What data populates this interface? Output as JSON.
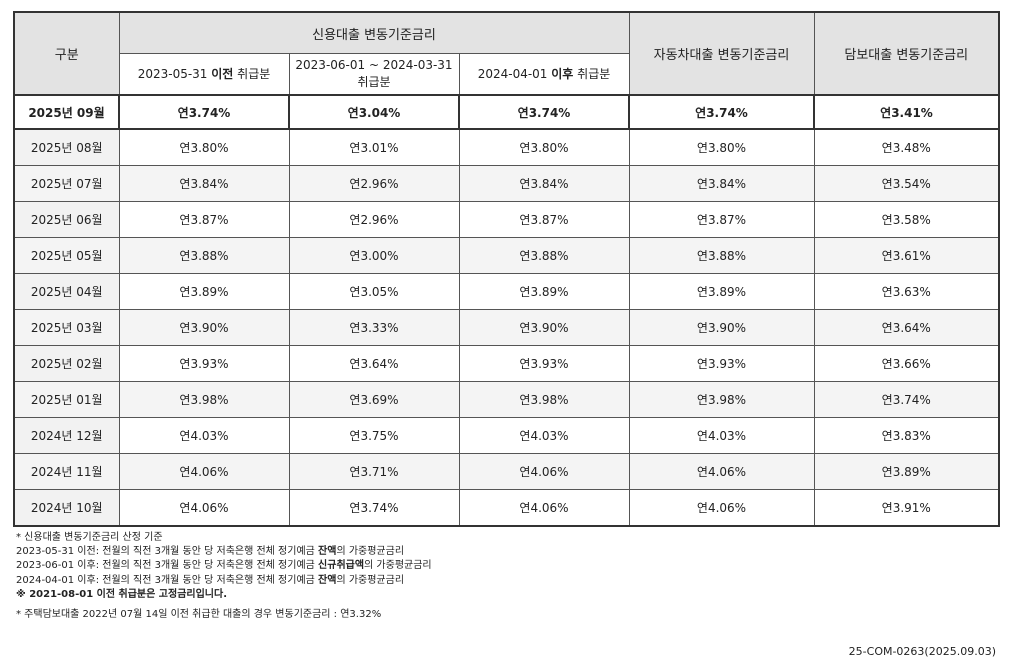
{
  "header": {
    "category": "구분",
    "credit_group": "신용대출 변동기준금리",
    "credit_sub": [
      {
        "pre": "2023-05-31 ",
        "bold": "이전",
        "post": " 취급분"
      },
      {
        "pre": "2023-06-01 ~ 2024-03-31",
        "bold": "",
        "post": "취급분"
      },
      {
        "pre": "2024-04-01 ",
        "bold": "이후",
        "post": " 취급분"
      }
    ],
    "auto": "자동차대출 변동기준금리",
    "mortgage": "담보대출 변동기준금리"
  },
  "highlight_row": {
    "month": "2025년 09월",
    "c1": "연3.74%",
    "c2": "연3.04%",
    "c3": "연3.74%",
    "auto": "연3.74%",
    "mortgage": "연3.41%"
  },
  "rows": [
    {
      "month": "2025년 08월",
      "c1": "연3.80%",
      "c2": "연3.01%",
      "c3": "연3.80%",
      "auto": "연3.80%",
      "mortgage": "연3.48%"
    },
    {
      "month": "2025년 07월",
      "c1": "연3.84%",
      "c2": "연2.96%",
      "c3": "연3.84%",
      "auto": "연3.84%",
      "mortgage": "연3.54%"
    },
    {
      "month": "2025년 06월",
      "c1": "연3.87%",
      "c2": "연2.96%",
      "c3": "연3.87%",
      "auto": "연3.87%",
      "mortgage": "연3.58%"
    },
    {
      "month": "2025년 05월",
      "c1": "연3.88%",
      "c2": "연3.00%",
      "c3": "연3.88%",
      "auto": "연3.88%",
      "mortgage": "연3.61%"
    },
    {
      "month": "2025년 04월",
      "c1": "연3.89%",
      "c2": "연3.05%",
      "c3": "연3.89%",
      "auto": "연3.89%",
      "mortgage": "연3.63%"
    },
    {
      "month": "2025년 03월",
      "c1": "연3.90%",
      "c2": "연3.33%",
      "c3": "연3.90%",
      "auto": "연3.90%",
      "mortgage": "연3.64%"
    },
    {
      "month": "2025년 02월",
      "c1": "연3.93%",
      "c2": "연3.64%",
      "c3": "연3.93%",
      "auto": "연3.93%",
      "mortgage": "연3.66%"
    },
    {
      "month": "2025년 01월",
      "c1": "연3.98%",
      "c2": "연3.69%",
      "c3": "연3.98%",
      "auto": "연3.98%",
      "mortgage": "연3.74%"
    },
    {
      "month": "2024년 12월",
      "c1": "연4.03%",
      "c2": "연3.75%",
      "c3": "연4.03%",
      "auto": "연4.03%",
      "mortgage": "연3.83%"
    },
    {
      "month": "2024년 11월",
      "c1": "연4.06%",
      "c2": "연3.71%",
      "c3": "연4.06%",
      "auto": "연4.06%",
      "mortgage": "연3.89%"
    },
    {
      "month": "2024년 10월",
      "c1": "연4.06%",
      "c2": "연3.74%",
      "c3": "연4.06%",
      "auto": "연4.06%",
      "mortgage": "연3.91%"
    }
  ],
  "notes": {
    "title": "* 신용대출 변동기준금리 산정 기준",
    "lines": [
      {
        "pre": "2023-05-31 이전: 전월의 직전 3개월 동안 당 저축은행 전체 정기예금 ",
        "bold": "잔액",
        "post": "의 가중평균금리"
      },
      {
        "pre": "2023-06-01 이후: 전월의 직전 3개월 동안 당 저축은행 전체 정기예금 ",
        "bold": "신규취급액",
        "post": "의 가중평균금리"
      },
      {
        "pre": "2024-04-01 이후: 전월의 직전 3개월 동안 당 저축은행 전체 정기예금 ",
        "bold": "잔액",
        "post": "의 가중평균금리"
      }
    ],
    "fixed": "※ 2021-08-01 이전 취급분은 고정금리입니다.",
    "mortgage_note": "* 주택담보대출 2022년 07월 14일 이전 취급한 대출의 경우 변동기준금리 : 연3.32%"
  },
  "doc_no": "25-COM-0263(2025.09.03)"
}
